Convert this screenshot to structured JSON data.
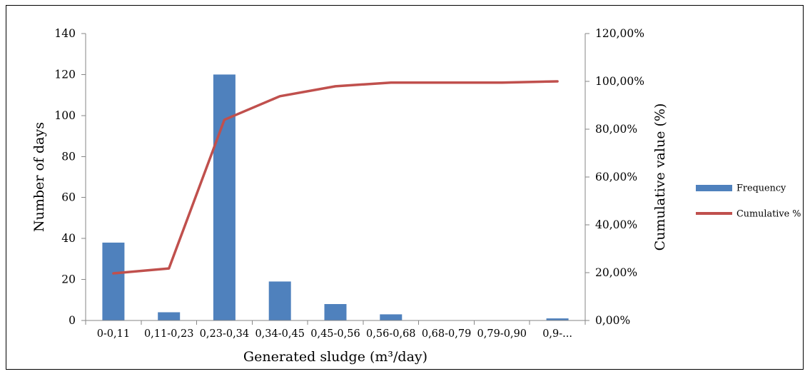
{
  "chart_data": {
    "type": "bar",
    "categories": [
      "0-0,11",
      "0,11-0,23",
      "0,23-0,34",
      "0,34-0,45",
      "0,45-0,56",
      "0,56-0,68",
      "0,68-0,79",
      "0,79-0,90",
      "0,9-..."
    ],
    "series": [
      {
        "name": "Frequency",
        "type": "bar",
        "axis": "left",
        "color": "#4F81BD",
        "values": [
          38,
          4,
          120,
          19,
          8,
          3,
          0,
          0,
          1
        ]
      },
      {
        "name": "Cumulative %",
        "type": "line",
        "axis": "right",
        "color": "#C0504D",
        "values": [
          19.69,
          21.76,
          83.94,
          93.78,
          97.93,
          99.48,
          99.48,
          99.48,
          100.0
        ]
      }
    ],
    "xlabel": "Generated sludge (m³/day)",
    "ylabel": "Number of days",
    "y2label": "Cumulative value (%)",
    "ylim": [
      0,
      140
    ],
    "y2lim": [
      0,
      120
    ],
    "yticks": [
      "0",
      "20",
      "40",
      "60",
      "80",
      "100",
      "120",
      "140"
    ],
    "y2ticks": [
      "0,00%",
      "20,00%",
      "40,00%",
      "60,00%",
      "80,00%",
      "100,00%",
      "120,00%"
    ],
    "grid": false,
    "legend": "right"
  }
}
